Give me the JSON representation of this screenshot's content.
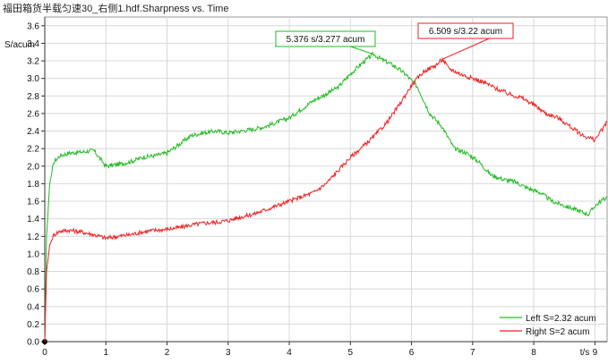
{
  "window_title": "福田箱货半载匀速30_右侧1.hdf.Sharpness vs. Time",
  "chart_data": {
    "type": "line",
    "title": "福田箱货半载匀速30_右侧1.hdf.Sharpness vs. Time",
    "xlabel": "t/s",
    "ylabel": "S/acum",
    "xlim": [
      0,
      9.2
    ],
    "ylim": [
      0,
      3.7
    ],
    "x_ticks": [
      "0",
      "1",
      "2",
      "3",
      "4",
      "5",
      "6",
      "7",
      "8",
      "9"
    ],
    "y_ticks": [
      "0.0",
      "0.2",
      "0.4",
      "0.6",
      "0.8",
      "1.0",
      "1.2",
      "1.4",
      "1.6",
      "1.8",
      "2.0",
      "2.2",
      "2.4",
      "2.6",
      "2.8",
      "3.0",
      "3.2",
      "3.4",
      "3.6"
    ],
    "grid": true,
    "legend_position": "bottom-right",
    "series": [
      {
        "name": "Left S=2.32 acum",
        "color": "#22bb22",
        "x": [
          0,
          0.03,
          0.08,
          0.15,
          0.25,
          0.4,
          0.6,
          0.8,
          1.0,
          1.2,
          1.4,
          1.6,
          1.8,
          2.0,
          2.2,
          2.4,
          2.6,
          2.8,
          3.0,
          3.2,
          3.4,
          3.6,
          3.8,
          4.0,
          4.2,
          4.4,
          4.6,
          4.8,
          5.0,
          5.2,
          5.376,
          5.5,
          5.7,
          5.9,
          6.1,
          6.3,
          6.5,
          6.7,
          6.9,
          7.1,
          7.3,
          7.5,
          7.7,
          7.9,
          8.1,
          8.3,
          8.5,
          8.7,
          8.9,
          9.0,
          9.1,
          9.2
        ],
        "y": [
          0.0,
          1.2,
          1.8,
          2.05,
          2.12,
          2.15,
          2.16,
          2.18,
          2.0,
          2.02,
          2.05,
          2.1,
          2.12,
          2.15,
          2.25,
          2.35,
          2.38,
          2.4,
          2.38,
          2.4,
          2.42,
          2.45,
          2.5,
          2.55,
          2.65,
          2.75,
          2.82,
          2.9,
          3.05,
          3.18,
          3.277,
          3.22,
          3.15,
          3.05,
          2.9,
          2.6,
          2.45,
          2.2,
          2.15,
          2.05,
          1.9,
          1.85,
          1.82,
          1.75,
          1.7,
          1.6,
          1.55,
          1.5,
          1.45,
          1.55,
          1.6,
          1.65
        ]
      },
      {
        "name": "Right S=2 acum",
        "color": "#ee2222",
        "x": [
          0,
          0.03,
          0.08,
          0.15,
          0.25,
          0.4,
          0.6,
          0.8,
          1.0,
          1.2,
          1.4,
          1.6,
          1.8,
          2.0,
          2.2,
          2.4,
          2.6,
          2.8,
          3.0,
          3.2,
          3.4,
          3.6,
          3.8,
          4.0,
          4.2,
          4.4,
          4.6,
          4.8,
          5.0,
          5.2,
          5.4,
          5.6,
          5.8,
          6.0,
          6.2,
          6.4,
          6.509,
          6.6,
          6.8,
          7.0,
          7.2,
          7.4,
          7.6,
          7.8,
          8.0,
          8.2,
          8.4,
          8.6,
          8.8,
          9.0,
          9.1,
          9.2
        ],
        "y": [
          0.0,
          0.8,
          1.1,
          1.22,
          1.26,
          1.27,
          1.25,
          1.22,
          1.18,
          1.2,
          1.22,
          1.25,
          1.27,
          1.28,
          1.3,
          1.33,
          1.35,
          1.36,
          1.38,
          1.42,
          1.45,
          1.5,
          1.55,
          1.6,
          1.65,
          1.7,
          1.8,
          1.95,
          2.1,
          2.22,
          2.35,
          2.5,
          2.7,
          2.92,
          3.08,
          3.15,
          3.22,
          3.12,
          3.05,
          3.0,
          2.95,
          2.88,
          2.82,
          2.78,
          2.7,
          2.6,
          2.55,
          2.45,
          2.35,
          2.3,
          2.4,
          2.5
        ]
      }
    ],
    "annotations": [
      {
        "text": "5.376 s/3.277 acum",
        "x": 5.376,
        "y": 3.277,
        "color": "#22bb22"
      },
      {
        "text": "6.509 s/3.22 acum",
        "x": 6.509,
        "y": 3.22,
        "color": "#ee2222"
      }
    ]
  }
}
